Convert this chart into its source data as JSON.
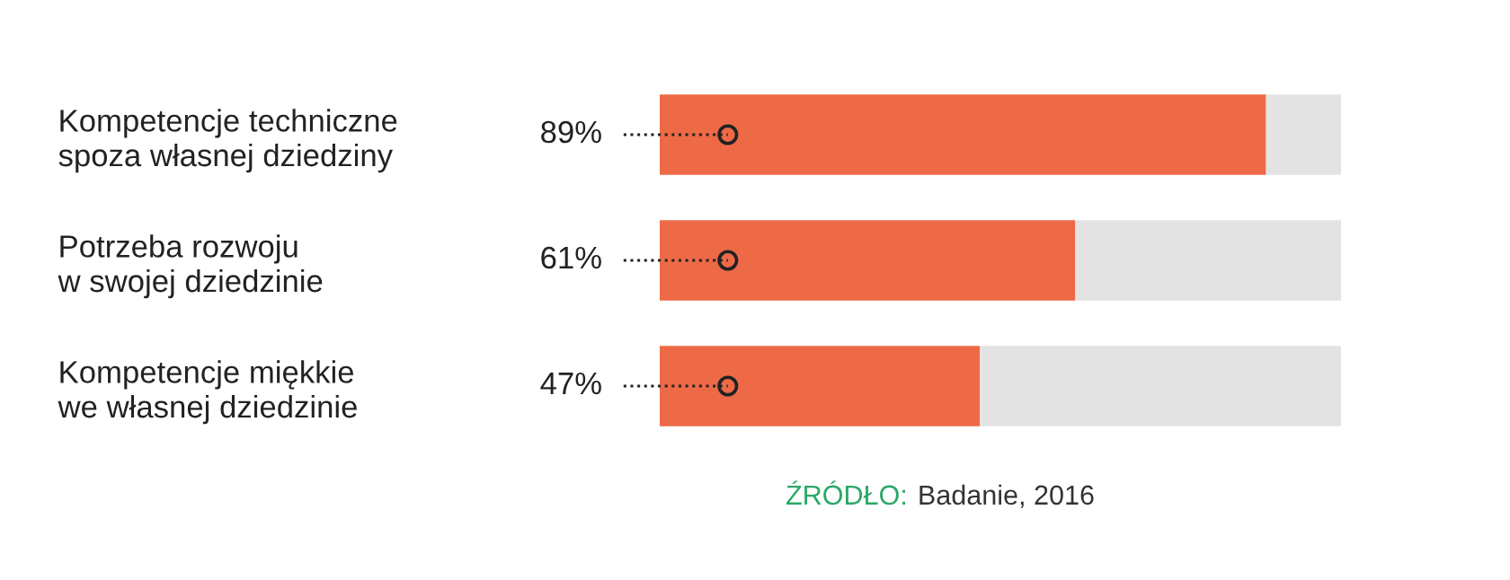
{
  "chart_data": {
    "type": "bar",
    "orientation": "horizontal",
    "stacked": true,
    "categories": [
      "Kompetencje techniczne\nspoza własnej dziedziny",
      "Potrzeba rozwoju\nw swojej dziedzinie",
      "Kompetencje miękkie\nwe własnej dziedzinie"
    ],
    "series": [
      {
        "color": "#ee6a47",
        "values": [
          89,
          61,
          47
        ],
        "value_labels": [
          "89%",
          "61%",
          "47%"
        ]
      },
      {
        "color": "#e3e3e3",
        "values": [
          11,
          39,
          53
        ]
      }
    ],
    "xlim": [
      0,
      100
    ],
    "tick_labels": "y",
    "grid": false,
    "legend": false,
    "annotations": [
      "ŹRÓDŁO:",
      "Badanie, 2016"
    ]
  }
}
